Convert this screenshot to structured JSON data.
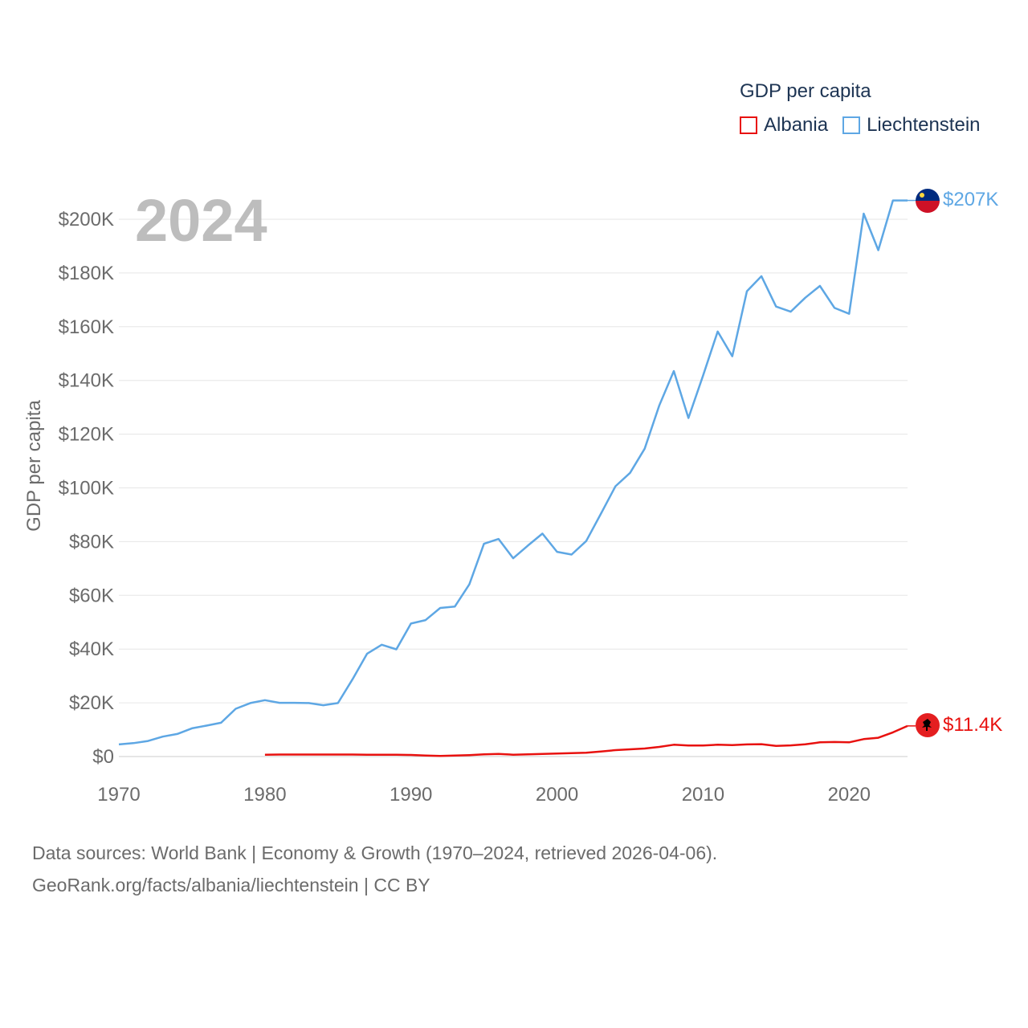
{
  "legend": {
    "title": "GDP per capita",
    "items": [
      {
        "label": "Albania",
        "color": "#e8110f"
      },
      {
        "label": "Liechtenstein",
        "color": "#5ea7e4"
      }
    ]
  },
  "year_label": "2024",
  "footer": {
    "line1": "Data sources: World Bank | Economy & Growth (1970–2024, retrieved 2026-04-06).",
    "line2": "GeoRank.org/facts/albania/liechtenstein | CC BY"
  },
  "chart_data": {
    "type": "line",
    "title": "GDP per capita",
    "xlabel": "",
    "ylabel": "GDP per capita",
    "xlim": [
      1970,
      2024
    ],
    "ylim": [
      0,
      200000
    ],
    "grid": true,
    "x_ticks": [
      "1970",
      "1980",
      "1990",
      "2000",
      "2010",
      "2020"
    ],
    "y_ticks": [
      "$0",
      "$20K",
      "$40K",
      "$60K",
      "$80K",
      "$100K",
      "$120K",
      "$140K",
      "$160K",
      "$180K",
      "$200K"
    ],
    "series": [
      {
        "name": "Liechtenstein",
        "color": "#5ea7e4",
        "end_label": "$207K",
        "x": [
          1970,
          1971,
          1972,
          1973,
          1974,
          1975,
          1976,
          1977,
          1978,
          1979,
          1980,
          1981,
          1982,
          1983,
          1984,
          1985,
          1986,
          1987,
          1988,
          1989,
          1990,
          1991,
          1992,
          1993,
          1994,
          1995,
          1996,
          1997,
          1998,
          1999,
          2000,
          2001,
          2002,
          2003,
          2004,
          2005,
          2006,
          2007,
          2008,
          2009,
          2010,
          2011,
          2012,
          2013,
          2014,
          2015,
          2016,
          2017,
          2018,
          2019,
          2020,
          2021,
          2022,
          2023,
          2024
        ],
        "values": [
          4500,
          5000,
          5800,
          7400,
          8400,
          10500,
          11500,
          12600,
          17800,
          19900,
          21000,
          20000,
          20000,
          19900,
          19100,
          19900,
          28800,
          38300,
          41600,
          39900,
          49500,
          50800,
          55300,
          55800,
          64100,
          79200,
          81000,
          73800,
          78500,
          83000,
          76200,
          75200,
          80200,
          90300,
          100600,
          105600,
          114600,
          130700,
          143500,
          126000,
          141800,
          158200,
          149000,
          173200,
          178800,
          167500,
          165600,
          170800,
          175200,
          167000,
          164800,
          202100,
          188500,
          207000,
          207000
        ]
      },
      {
        "name": "Albania",
        "color": "#e8110f",
        "end_label": "$11.4K",
        "x": [
          1980,
          1981,
          1982,
          1983,
          1984,
          1985,
          1986,
          1987,
          1988,
          1989,
          1990,
          1991,
          1992,
          1993,
          1994,
          1995,
          1996,
          1997,
          1998,
          1999,
          2000,
          2001,
          2002,
          2003,
          2004,
          2005,
          2006,
          2007,
          2008,
          2009,
          2010,
          2011,
          2012,
          2013,
          2014,
          2015,
          2016,
          2017,
          2018,
          2019,
          2020,
          2021,
          2022,
          2023,
          2024
        ],
        "values": [
          700,
          750,
          750,
          750,
          750,
          750,
          750,
          700,
          700,
          700,
          600,
          400,
          200,
          350,
          550,
          800,
          1000,
          700,
          800,
          1000,
          1150,
          1300,
          1400,
          1850,
          2400,
          2700,
          3000,
          3600,
          4400,
          4100,
          4100,
          4400,
          4250,
          4500,
          4600,
          3950,
          4150,
          4550,
          5300,
          5400,
          5300,
          6500,
          7000,
          9000,
          11400
        ]
      }
    ]
  }
}
